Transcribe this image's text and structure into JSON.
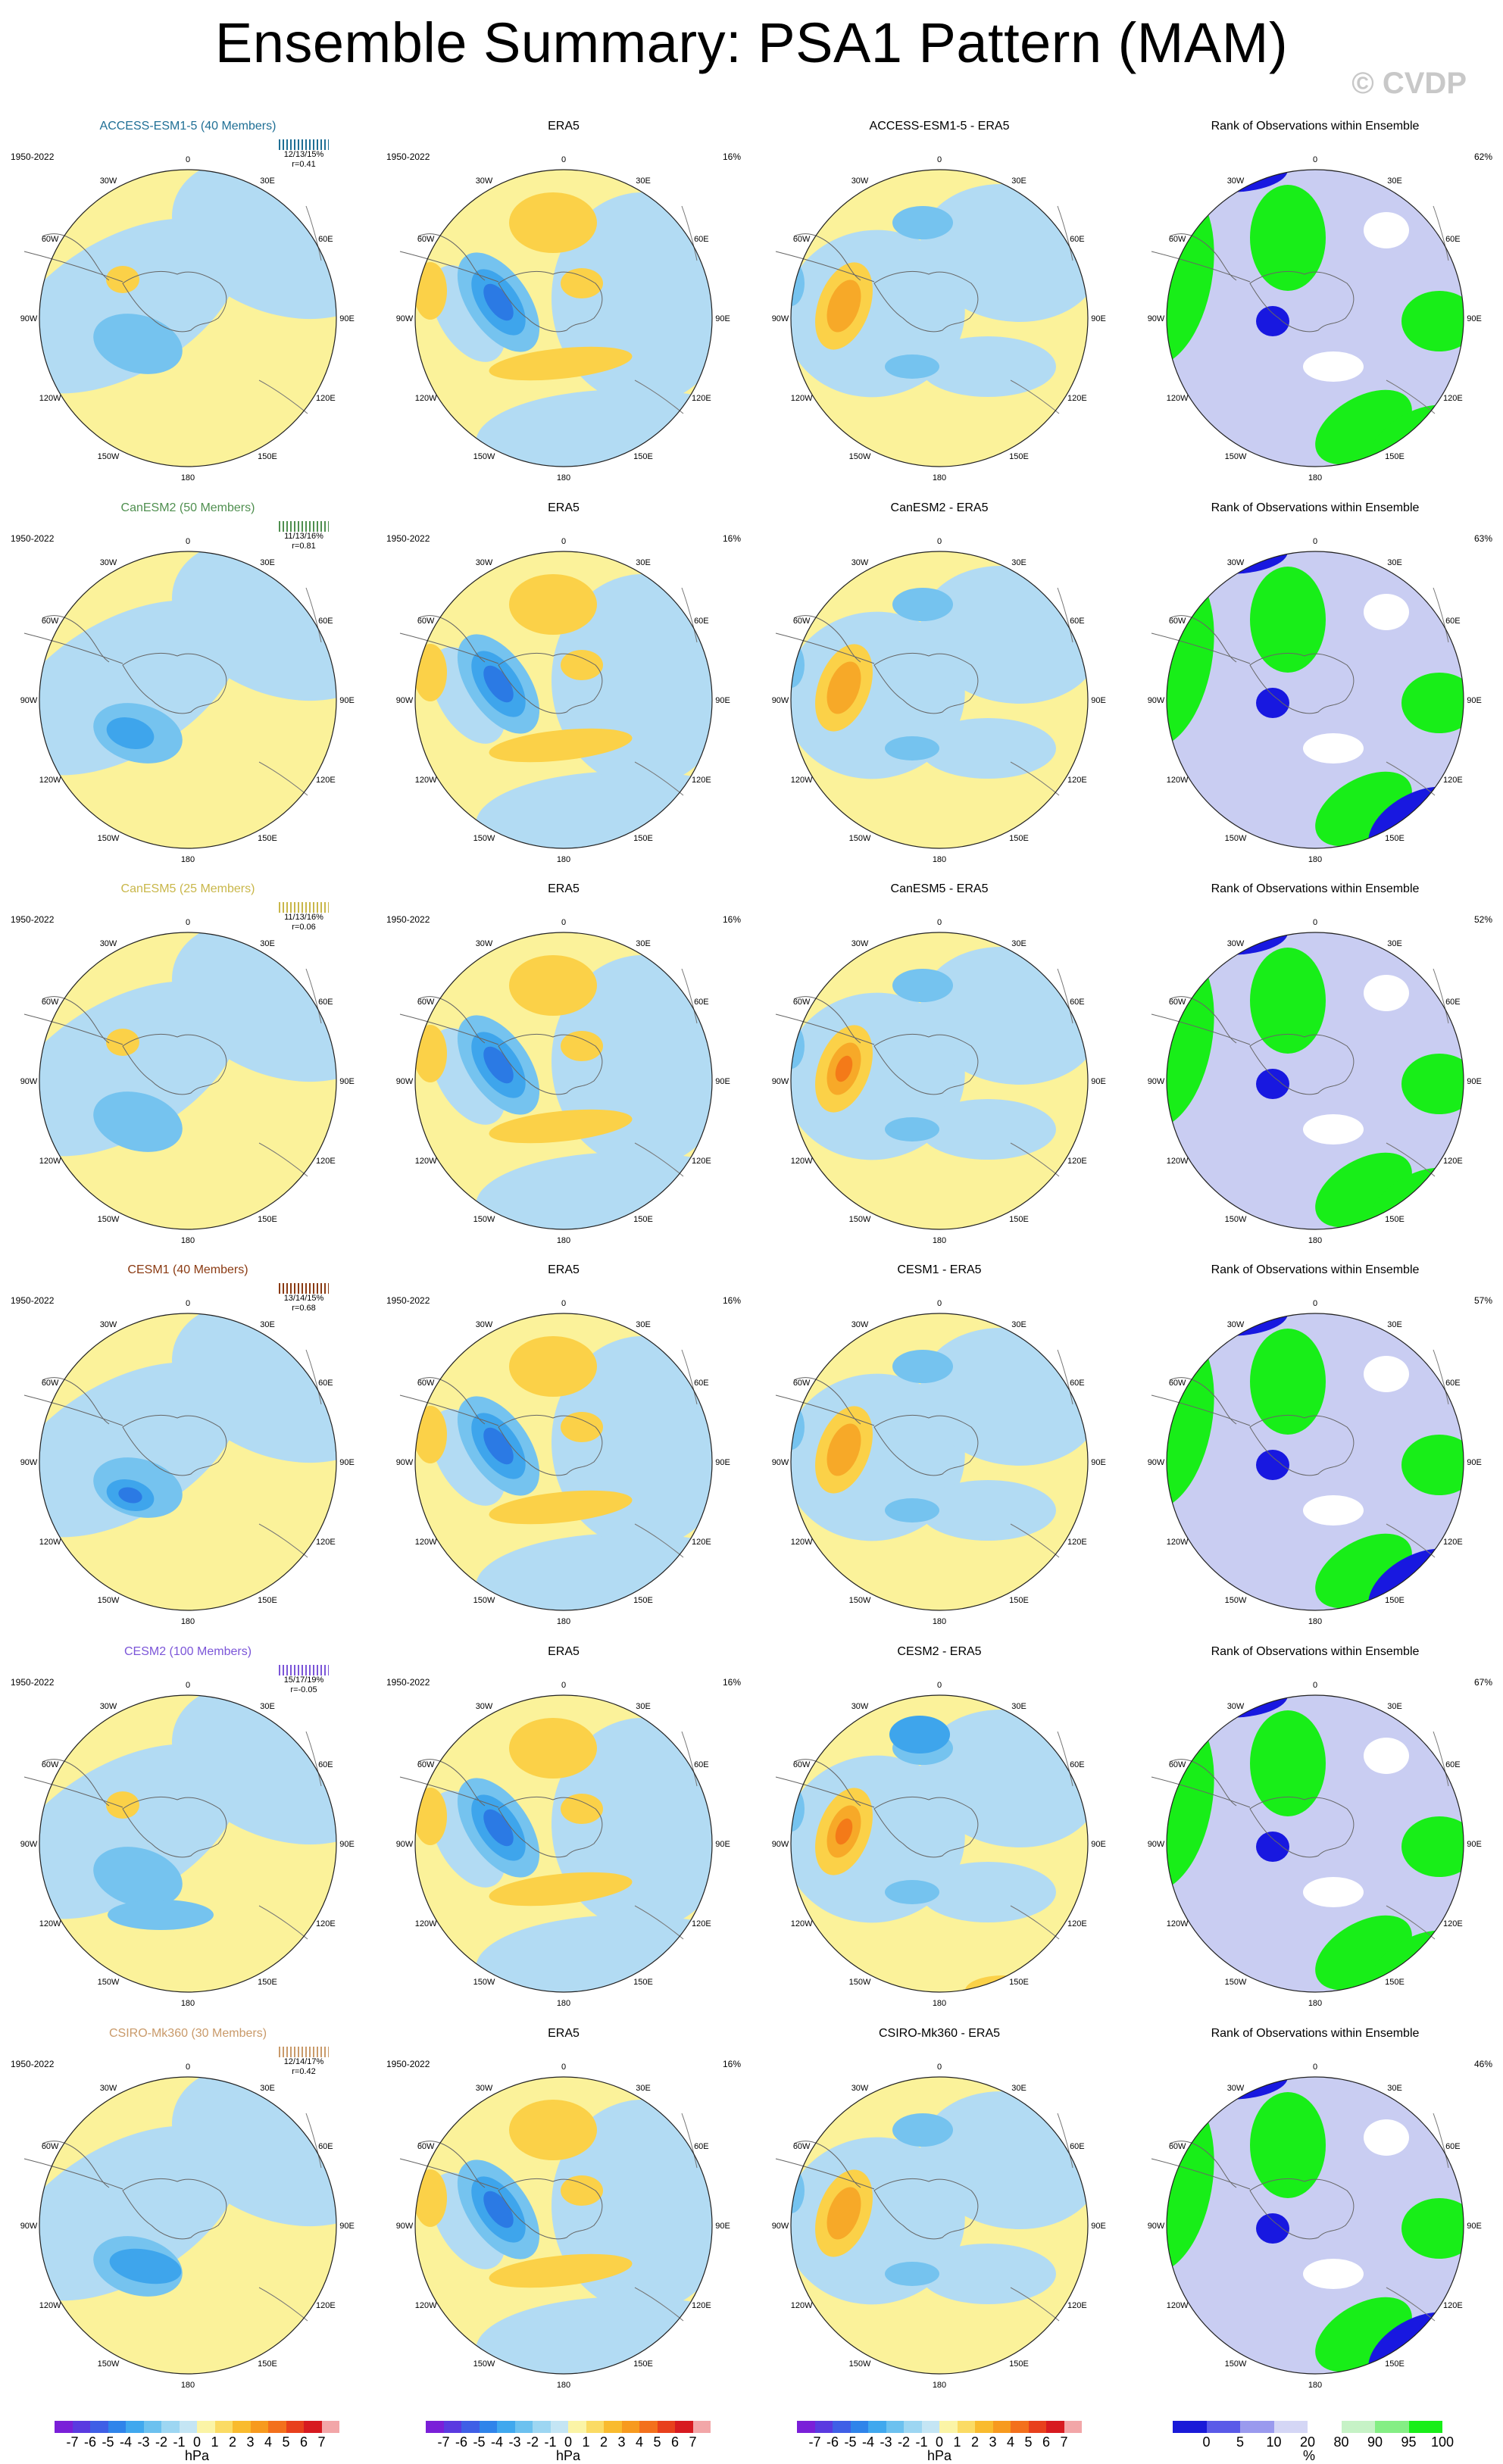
{
  "header": {
    "title": "Ensemble Summary: PSA1 Pattern (MAM)",
    "copyright": "© CVDP"
  },
  "colors": {
    "pos1": "#fbf29a",
    "pos2": "#fbd148",
    "pos3": "#f7a928",
    "pos4": "#f47a18",
    "neg1": "#b2dbf3",
    "neg2": "#75c3ef",
    "neg3": "#3ea5ec",
    "neg4": "#2b7ae4",
    "neg5": "#4f58e4",
    "rank_low": "#1818e0",
    "rank_mid": "#c9cdf2",
    "rank_high": "#18ee18"
  },
  "map_labels": {
    "lon": [
      "0",
      "30E",
      "60E",
      "90E",
      "120E",
      "150E",
      "180",
      "150W",
      "120W",
      "90W",
      "60W",
      "30W"
    ]
  },
  "rows": [
    {
      "model": "ACCESS-ESM1-5 (40 Members)",
      "model_color": "#1f6f95",
      "period": "1950-2022",
      "stats": "12/13/15%",
      "r": "r=0.41",
      "obs_title": "ERA5",
      "obs_period": "1950-2022",
      "obs_pct": "16%",
      "diff_title": "ACCESS-ESM1-5 - ERA5",
      "rank_title": "Rank of Observations within Ensemble",
      "rank_pct": "62%"
    },
    {
      "model": "CanESM2 (50 Members)",
      "model_color": "#4f8f4f",
      "period": "1950-2022",
      "stats": "11/13/16%",
      "r": "r=0.81",
      "obs_title": "ERA5",
      "obs_period": "1950-2022",
      "obs_pct": "16%",
      "diff_title": "CanESM2 - ERA5",
      "rank_title": "Rank of Observations within Ensemble",
      "rank_pct": "63%"
    },
    {
      "model": "CanESM5 (25 Members)",
      "model_color": "#c9b74a",
      "period": "1950-2022",
      "stats": "11/13/16%",
      "r": "r=0.06",
      "obs_title": "ERA5",
      "obs_period": "1950-2022",
      "obs_pct": "16%",
      "diff_title": "CanESM5 - ERA5",
      "rank_title": "Rank of Observations within Ensemble",
      "rank_pct": "52%"
    },
    {
      "model": "CESM1 (40 Members)",
      "model_color": "#8a3a12",
      "period": "1950-2022",
      "stats": "13/14/15%",
      "r": "r=0.68",
      "obs_title": "ERA5",
      "obs_period": "1950-2022",
      "obs_pct": "16%",
      "diff_title": "CESM1 - ERA5",
      "rank_title": "Rank of Observations within Ensemble",
      "rank_pct": "57%"
    },
    {
      "model": "CESM2 (100 Members)",
      "model_color": "#7b55d8",
      "period": "1950-2022",
      "stats": "15/17/19%",
      "r": "r=-0.05",
      "obs_title": "ERA5",
      "obs_period": "1950-2022",
      "obs_pct": "16%",
      "diff_title": "CESM2 - ERA5",
      "rank_title": "Rank of Observations within Ensemble",
      "rank_pct": "67%"
    },
    {
      "model": "CSIRO-Mk360 (30 Members)",
      "model_color": "#c99a6a",
      "period": "1950-2022",
      "stats": "12/14/17%",
      "r": "r=0.42",
      "obs_title": "ERA5",
      "obs_period": "1950-2022",
      "obs_pct": "16%",
      "diff_title": "CSIRO-Mk360 - ERA5",
      "rank_title": "Rank of Observations within Ensemble",
      "rank_pct": "46%"
    }
  ],
  "colorbar": {
    "hpa_labels": [
      "-7",
      "-6",
      "-5",
      "-4",
      "-3",
      "-2",
      "-1",
      "0",
      "1",
      "2",
      "3",
      "4",
      "5",
      "6",
      "7"
    ],
    "hpa_unit": "hPa",
    "hpa_colors": [
      "#7a1fd8",
      "#5a3ae0",
      "#3f5fe6",
      "#2f84ea",
      "#40a8ee",
      "#6cc1ef",
      "#9dd6f2",
      "#c4e5f4",
      "#fbf4a6",
      "#fbdb64",
      "#f9bb2e",
      "#f79a1e",
      "#f3701c",
      "#e8401c",
      "#d71a20",
      "#f2a6a8"
    ],
    "rank_labels": [
      "0",
      "5",
      "10",
      "20",
      "80",
      "90",
      "95",
      "100"
    ],
    "rank_unit": "%",
    "rank_colors": [
      "#1a1ad8",
      "#5a5ae8",
      "#9a9aee",
      "#d4d6f5",
      "#ffffff",
      "#c6f2c6",
      "#84ee84",
      "#18ee18"
    ]
  }
}
